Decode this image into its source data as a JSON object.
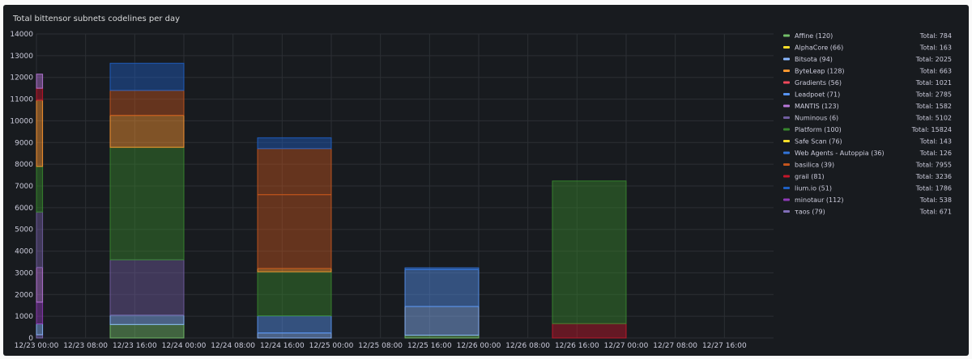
{
  "chart_data": {
    "type": "bar",
    "stacked": true,
    "title": "Total bittensor subnets codelines per day",
    "xlabel": "",
    "ylabel": "",
    "ylim": [
      0,
      14000
    ],
    "grid": true,
    "legend_position": "right",
    "y_ticks": [
      0,
      1000,
      2000,
      3000,
      4000,
      5000,
      6000,
      7000,
      8000,
      9000,
      10000,
      11000,
      12000,
      13000,
      14000
    ],
    "x_range_hours": [
      0,
      120
    ],
    "x_ticks": [
      {
        "label": "12/23 00:00",
        "hour": 0
      },
      {
        "label": "12/23 08:00",
        "hour": 8
      },
      {
        "label": "12/23 16:00",
        "hour": 16
      },
      {
        "label": "12/24 00:00",
        "hour": 24
      },
      {
        "label": "12/24 08:00",
        "hour": 32
      },
      {
        "label": "12/24 16:00",
        "hour": 40
      },
      {
        "label": "12/25 00:00",
        "hour": 48
      },
      {
        "label": "12/25 08:00",
        "hour": 56
      },
      {
        "label": "12/25 16:00",
        "hour": 64
      },
      {
        "label": "12/26 00:00",
        "hour": 72
      },
      {
        "label": "12/26 08:00",
        "hour": 80
      },
      {
        "label": "12/26 16:00",
        "hour": 88
      },
      {
        "label": "12/27 00:00",
        "hour": 96
      },
      {
        "label": "12/27 08:00",
        "hour": 104
      },
      {
        "label": "12/27 16:00",
        "hour": 112
      }
    ],
    "legend": [
      {
        "label": "Affine (120)",
        "total": "Total: 784",
        "color": "#73bf69"
      },
      {
        "label": "AlphaCore (66)",
        "total": "Total: 163",
        "color": "#fade2a"
      },
      {
        "label": "Bitsota (94)",
        "total": "Total: 2025",
        "color": "#8ab8ff"
      },
      {
        "label": "ByteLeap (128)",
        "total": "Total: 663",
        "color": "#ff9830"
      },
      {
        "label": "Gradients (56)",
        "total": "Total: 1021",
        "color": "#f2495c"
      },
      {
        "label": "Leadpoet (71)",
        "total": "Total: 2785",
        "color": "#5794f2"
      },
      {
        "label": "MANTIS (123)",
        "total": "Total: 1582",
        "color": "#b877d9"
      },
      {
        "label": "Numinous (6)",
        "total": "Total: 5102",
        "color": "#705da0"
      },
      {
        "label": "Platform (100)",
        "total": "Total: 15824",
        "color": "#37872d"
      },
      {
        "label": "Safe Scan (76)",
        "total": "Total: 143",
        "color": "#fade2a"
      },
      {
        "label": "Web Agents - Autoppia (36)",
        "total": "Total: 126",
        "color": "#3274d9"
      },
      {
        "label": "basilica (39)",
        "total": "Total: 7955",
        "color": "#c4551d"
      },
      {
        "label": "grail (81)",
        "total": "Total: 3236",
        "color": "#c4162a"
      },
      {
        "label": "lium.io (51)",
        "total": "Total: 1786",
        "color": "#1f60c4"
      },
      {
        "label": "minotaur (112)",
        "total": "Total: 538",
        "color": "#8f3bb8"
      },
      {
        "label": "τaos (79)",
        "total": "Total: 671",
        "color": "#806eb7"
      }
    ],
    "bars": [
      {
        "hour_start": 0,
        "hour_end": 1,
        "segments": [
          {
            "series": "τaos",
            "from": 0,
            "to": 150,
            "color": "#806eb7"
          },
          {
            "series": "Bitsota",
            "from": 150,
            "to": 650,
            "color": "#8ab8ff"
          },
          {
            "series": "minotaur",
            "from": 650,
            "to": 1650,
            "color": "#8f3bb8"
          },
          {
            "series": "MANTIS",
            "from": 1650,
            "to": 3250,
            "color": "#b877d9"
          },
          {
            "series": "Numinous",
            "from": 3250,
            "to": 5800,
            "color": "#705da0"
          },
          {
            "series": "Platform",
            "from": 5800,
            "to": 7900,
            "color": "#37872d"
          },
          {
            "series": "ByteLeap",
            "from": 7900,
            "to": 10950,
            "color": "#ff9830"
          },
          {
            "series": "grail",
            "from": 10950,
            "to": 11500,
            "color": "#c4162a"
          },
          {
            "series": "MANTIS",
            "from": 11500,
            "to": 12150,
            "color": "#b877d9"
          }
        ]
      },
      {
        "hour_start": 12,
        "hour_end": 24,
        "segments": [
          {
            "series": "Affine",
            "from": 0,
            "to": 620,
            "color": "#73bf69"
          },
          {
            "series": "Bitsota",
            "from": 620,
            "to": 1050,
            "color": "#8ab8ff"
          },
          {
            "series": "Numinous",
            "from": 1050,
            "to": 3600,
            "color": "#705da0"
          },
          {
            "series": "Platform",
            "from": 3600,
            "to": 8780,
            "color": "#37872d"
          },
          {
            "series": "ByteLeap",
            "from": 8780,
            "to": 10250,
            "color": "#ff9830"
          },
          {
            "series": "basilica",
            "from": 10250,
            "to": 11400,
            "color": "#c4551d"
          },
          {
            "series": "lium.io",
            "from": 11400,
            "to": 12650,
            "color": "#1f60c4"
          }
        ]
      },
      {
        "hour_start": 36,
        "hour_end": 48,
        "segments": [
          {
            "series": "Bitsota",
            "from": 0,
            "to": 230,
            "color": "#8ab8ff"
          },
          {
            "series": "Leadpoet",
            "from": 230,
            "to": 1020,
            "color": "#5794f2"
          },
          {
            "series": "Platform",
            "from": 1020,
            "to": 3050,
            "color": "#37872d"
          },
          {
            "series": "ByteLeap",
            "from": 3050,
            "to": 3200,
            "color": "#ff9830"
          },
          {
            "series": "basilica",
            "from": 3200,
            "to": 6600,
            "color": "#c4551d"
          },
          {
            "series": "basilica",
            "from": 6600,
            "to": 8720,
            "color": "#c4551d"
          },
          {
            "series": "lium.io",
            "from": 8720,
            "to": 9220,
            "color": "#1f60c4"
          }
        ]
      },
      {
        "hour_start": 60,
        "hour_end": 72,
        "segments": [
          {
            "series": "Affine",
            "from": 0,
            "to": 130,
            "color": "#73bf69"
          },
          {
            "series": "Bitsota",
            "from": 130,
            "to": 1450,
            "color": "#8ab8ff"
          },
          {
            "series": "Leadpoet",
            "from": 1450,
            "to": 3150,
            "color": "#5794f2"
          },
          {
            "series": "Web Agents - Autoppia",
            "from": 3150,
            "to": 3230,
            "color": "#3274d9"
          }
        ]
      },
      {
        "hour_start": 84,
        "hour_end": 96,
        "segments": [
          {
            "series": "grail",
            "from": 0,
            "to": 660,
            "color": "#c4162a"
          },
          {
            "series": "Platform",
            "from": 660,
            "to": 7230,
            "color": "#37872d"
          }
        ]
      }
    ]
  }
}
